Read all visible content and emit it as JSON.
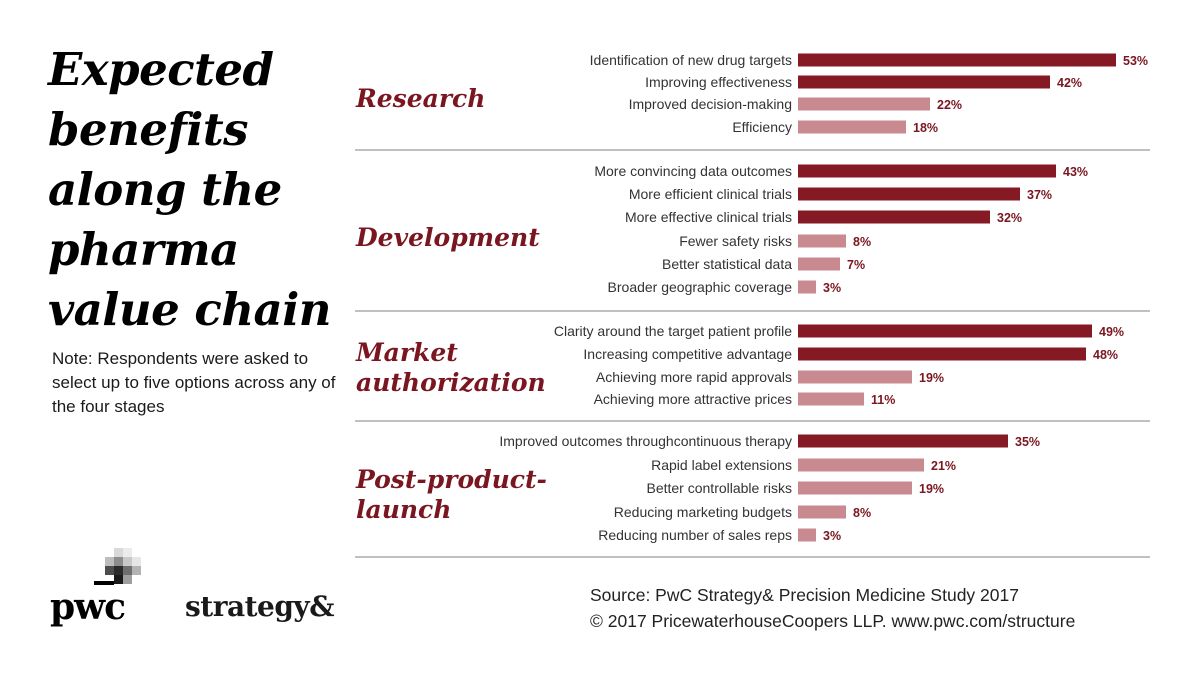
{
  "title_lines": [
    "Expected",
    "benefits",
    "along the",
    "pharma",
    "value chain"
  ],
  "note": "Note: Respondents were asked to select up to five options across any of the four stages",
  "source": "Source: PwC Strategy& Precision Medicine Study 2017",
  "copyright": "© 2017 PricewaterhouseCoopers LLP.  www.pwc.com/structure",
  "logos": {
    "pwc": "pwc",
    "strategy": "strategy&"
  },
  "colors": {
    "dark_bar": "#851a24",
    "light_bar": "#c98a8f",
    "stage_text": "#7a1620",
    "divider": "#9a9a9a"
  },
  "chart_data": {
    "type": "bar",
    "orientation": "horizontal",
    "value_unit": "%",
    "xlim": [
      0,
      55
    ],
    "groups": [
      {
        "stage_lines": [
          "Research"
        ],
        "items": [
          {
            "label": "Identification of new drug targets",
            "value": 53,
            "tone": "dark"
          },
          {
            "label": "Improving effectiveness",
            "value": 42,
            "tone": "dark"
          },
          {
            "label": "Improved decision-making",
            "value": 22,
            "tone": "light"
          },
          {
            "label": "Efficiency",
            "value": 18,
            "tone": "light"
          }
        ]
      },
      {
        "stage_lines": [
          "Development"
        ],
        "items": [
          {
            "label": "More convincing data outcomes",
            "value": 43,
            "tone": "dark"
          },
          {
            "label": "More efficient clinical trials",
            "value": 37,
            "tone": "dark"
          },
          {
            "label": "More effective clinical trials",
            "value": 32,
            "tone": "dark"
          },
          {
            "label": "Fewer safety risks",
            "value": 8,
            "tone": "light"
          },
          {
            "label": "Better statistical data",
            "value": 7,
            "tone": "light"
          },
          {
            "label": "Broader geographic coverage",
            "value": 3,
            "tone": "light"
          }
        ]
      },
      {
        "stage_lines": [
          "Market",
          "authorization"
        ],
        "items": [
          {
            "label": "Clarity around the target patient profile",
            "value": 49,
            "tone": "dark"
          },
          {
            "label": "Increasing competitive advantage",
            "value": 48,
            "tone": "dark"
          },
          {
            "label": "Achieving more rapid approvals",
            "value": 19,
            "tone": "light"
          },
          {
            "label": "Achieving more attractive prices",
            "value": 11,
            "tone": "light"
          }
        ]
      },
      {
        "stage_lines": [
          "Post-product-",
          "launch"
        ],
        "items": [
          {
            "label": "Improved outcomes throughcontinuous therapy",
            "value": 35,
            "tone": "dark"
          },
          {
            "label": "Rapid label extensions",
            "value": 21,
            "tone": "light"
          },
          {
            "label": "Better controllable risks",
            "value": 19,
            "tone": "light"
          },
          {
            "label": "Reducing marketing budgets",
            "value": 8,
            "tone": "light"
          },
          {
            "label": "Reducing number of sales reps",
            "value": 3,
            "tone": "light"
          }
        ]
      }
    ]
  }
}
